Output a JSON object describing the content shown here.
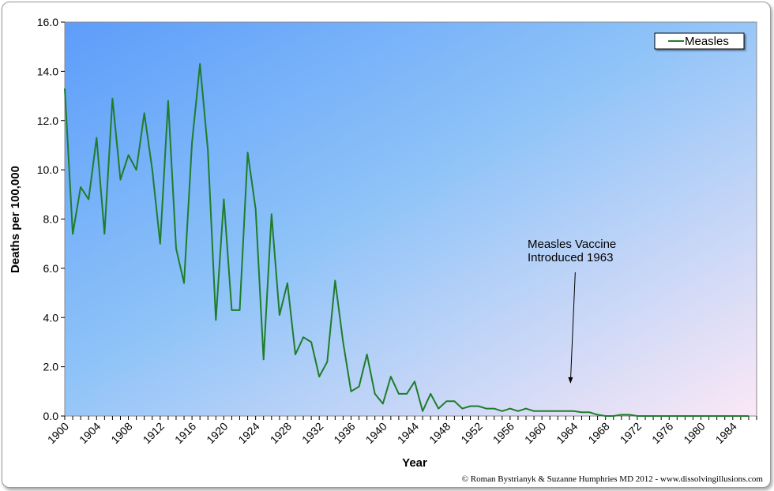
{
  "chart_data": {
    "type": "line",
    "title": "",
    "xlabel": "Year",
    "ylabel": "Deaths per 100,000",
    "ylim": [
      0,
      16
    ],
    "yticks": [
      "0.0",
      "2.0",
      "4.0",
      "6.0",
      "8.0",
      "10.0",
      "12.0",
      "14.0",
      "16.0"
    ],
    "xlim": [
      1900,
      1987
    ],
    "xticks": [
      "1900",
      "1904",
      "1908",
      "1912",
      "1916",
      "1920",
      "1924",
      "1928",
      "1932",
      "1936",
      "1940",
      "1944",
      "1948",
      "1952",
      "1956",
      "1960",
      "1964",
      "1968",
      "1972",
      "1976",
      "1980",
      "1984"
    ],
    "grid": false,
    "legend": {
      "position": "top-right",
      "entries": [
        "Measles"
      ]
    },
    "series": [
      {
        "name": "Measles",
        "color": "#1e7d2a",
        "x": [
          1900,
          1901,
          1902,
          1903,
          1904,
          1905,
          1906,
          1907,
          1908,
          1909,
          1910,
          1911,
          1912,
          1913,
          1914,
          1915,
          1916,
          1917,
          1918,
          1919,
          1920,
          1921,
          1922,
          1923,
          1924,
          1925,
          1926,
          1927,
          1928,
          1929,
          1930,
          1931,
          1932,
          1933,
          1934,
          1935,
          1936,
          1937,
          1938,
          1939,
          1940,
          1941,
          1942,
          1943,
          1944,
          1945,
          1946,
          1947,
          1948,
          1949,
          1950,
          1951,
          1952,
          1953,
          1954,
          1955,
          1956,
          1957,
          1958,
          1959,
          1960,
          1961,
          1962,
          1963,
          1964,
          1965,
          1966,
          1967,
          1968,
          1969,
          1970,
          1971,
          1972,
          1973,
          1974,
          1975,
          1976,
          1977,
          1978,
          1979,
          1980,
          1981,
          1982,
          1983,
          1984,
          1985,
          1986
        ],
        "values": [
          13.3,
          7.4,
          9.3,
          8.8,
          11.3,
          7.4,
          12.9,
          9.6,
          10.6,
          10.0,
          12.3,
          10.0,
          7.0,
          12.8,
          6.8,
          5.4,
          11.1,
          14.3,
          10.8,
          3.9,
          8.8,
          4.3,
          4.3,
          10.7,
          8.4,
          2.3,
          8.2,
          4.1,
          5.4,
          2.5,
          3.2,
          3.0,
          1.6,
          2.2,
          5.5,
          3.0,
          1.0,
          1.2,
          2.5,
          0.9,
          0.5,
          1.6,
          0.9,
          0.9,
          1.4,
          0.2,
          0.9,
          0.3,
          0.6,
          0.6,
          0.3,
          0.4,
          0.4,
          0.3,
          0.3,
          0.2,
          0.3,
          0.2,
          0.3,
          0.2,
          0.2,
          0.2,
          0.2,
          0.2,
          0.2,
          0.15,
          0.15,
          0.05,
          0.0,
          0.0,
          0.05,
          0.05,
          0.0,
          0.0,
          0.0,
          0.0,
          0.0,
          0.0,
          0.0,
          0.0,
          0.0,
          0.0,
          0.0,
          0.0,
          0.0,
          0.0,
          0.0
        ]
      }
    ],
    "annotations": [
      {
        "text_line1": "Measles Vaccine",
        "text_line2": "Introduced 1963",
        "x": 1963,
        "y": 0.1
      }
    ],
    "footer": "© Roman Bystrianyk & Suzanne Humphries MD 2012 - www.dissolvingillusions.com"
  }
}
